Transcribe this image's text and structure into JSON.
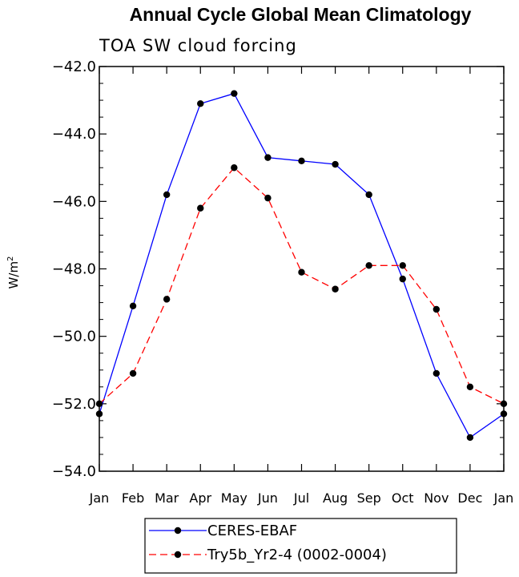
{
  "chart_data": {
    "type": "line",
    "title": "Annual Cycle Global Mean Climatology",
    "subtitle": "TOA SW cloud forcing",
    "xlabel": "",
    "ylabel_base": "W/m",
    "ylabel_exp": "2",
    "categories": [
      "Jan",
      "Feb",
      "Mar",
      "Apr",
      "May",
      "Jun",
      "Jul",
      "Aug",
      "Sep",
      "Oct",
      "Nov",
      "Dec",
      "Jan"
    ],
    "ylim": [
      -54.0,
      -42.0
    ],
    "yticks": [
      -42.0,
      -44.0,
      -46.0,
      -48.0,
      -50.0,
      -52.0,
      -54.0
    ],
    "ytick_labels": [
      "−42.0",
      "−44.0",
      "−46.0",
      "−48.0",
      "−50.0",
      "−52.0",
      "−54.0"
    ],
    "series": [
      {
        "name": "CERES-EBAF",
        "color": "#0000ff",
        "dash": "solid",
        "values": [
          -52.3,
          -49.1,
          -45.8,
          -43.1,
          -42.8,
          -44.7,
          -44.8,
          -44.9,
          -45.8,
          -48.3,
          -51.1,
          -53.0,
          -52.3
        ]
      },
      {
        "name": "Try5b_Yr2-4 (0002-0004)",
        "color": "#ff0000",
        "dash": "dashed",
        "values": [
          -52.0,
          -51.1,
          -48.9,
          -46.2,
          -45.0,
          -45.9,
          -48.1,
          -48.6,
          -47.9,
          -47.9,
          -49.2,
          -51.5,
          -52.0
        ]
      }
    ],
    "grid": false,
    "legend_position": "bottom-center"
  }
}
